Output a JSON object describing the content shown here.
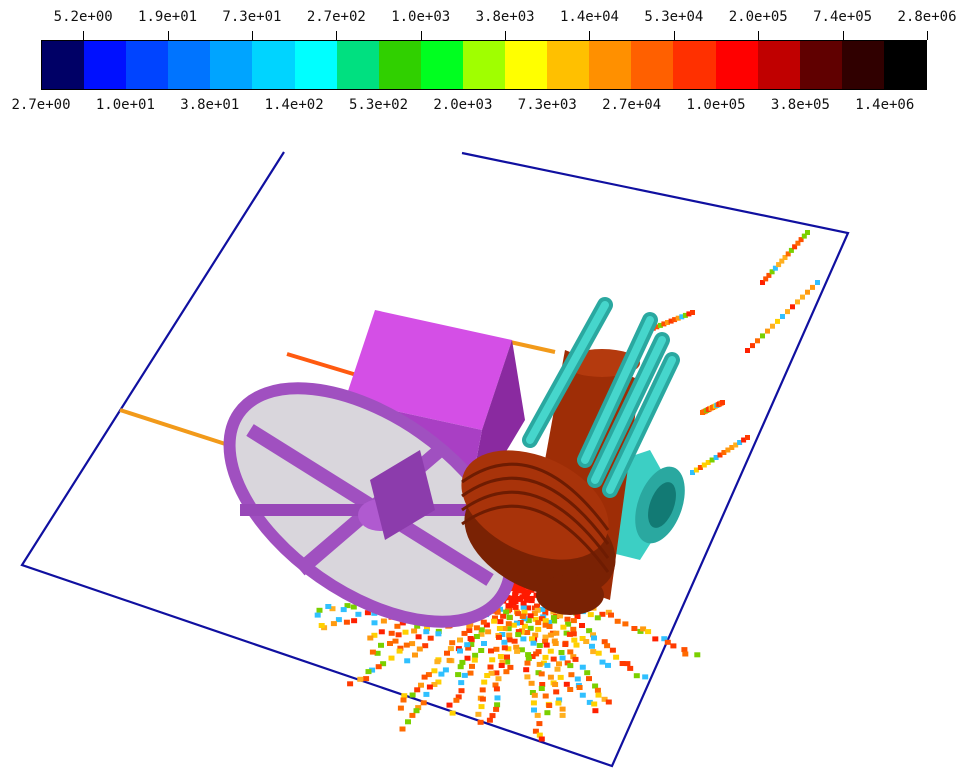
{
  "colorbar": {
    "top_labels": [
      "5.2e+00",
      "1.9e+01",
      "7.3e+01",
      "2.7e+02",
      "1.0e+03",
      "3.8e+03",
      "1.4e+04",
      "5.3e+04",
      "2.0e+05",
      "7.4e+05",
      "2.8e+06"
    ],
    "bottom_labels": [
      "2.7e+00",
      "1.0e+01",
      "3.8e+01",
      "1.4e+02",
      "5.3e+02",
      "2.0e+03",
      "7.3e+03",
      "2.7e+04",
      "1.0e+05",
      "3.8e+05",
      "1.4e+06"
    ],
    "colors": [
      "#000066",
      "#0010ff",
      "#0044ff",
      "#0074ff",
      "#00a4ff",
      "#00d4ff",
      "#00ffff",
      "#00e080",
      "#30d000",
      "#00ff20",
      "#a0ff00",
      "#ffff00",
      "#ffc000",
      "#ff9000",
      "#ff6000",
      "#ff3000",
      "#ff0000",
      "#c00000",
      "#600000",
      "#300000",
      "#000000"
    ]
  },
  "scene": {
    "frame_color": "#1010a0",
    "objects": [
      "ground-plane",
      "magenta-box",
      "purple-wheel",
      "brown-cylinder",
      "cyan-pipes",
      "cyan-pump",
      "particle-tracks"
    ]
  }
}
